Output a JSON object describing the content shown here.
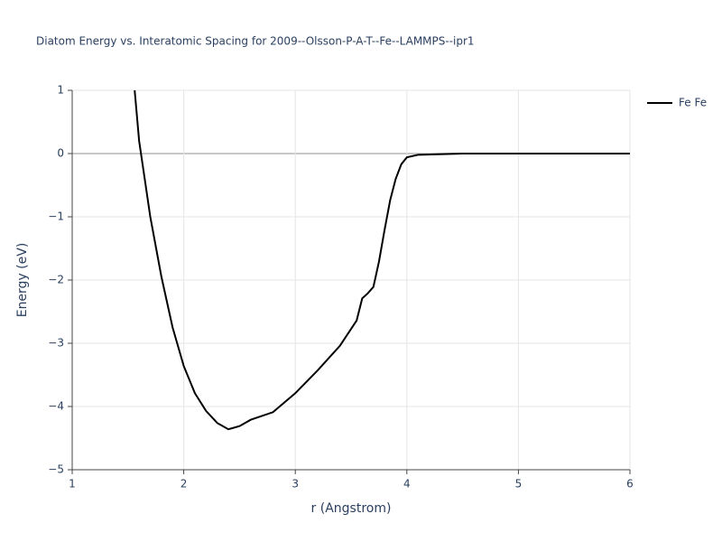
{
  "chart_data": {
    "type": "line",
    "title": "Diatom Energy vs. Interatomic Spacing for 2009--Olsson-P-A-T--Fe--LAMMPS--ipr1",
    "x_label": "r (Angstrom)",
    "y_label": "Energy (eV)",
    "x": [
      1.56,
      1.6,
      1.7,
      1.8,
      1.9,
      2.0,
      2.1,
      2.2,
      2.3,
      2.4,
      2.5,
      2.6,
      2.8,
      3.0,
      3.2,
      3.4,
      3.55,
      3.6,
      3.65,
      3.7,
      3.75,
      3.8,
      3.85,
      3.9,
      3.95,
      4.0,
      4.1,
      4.5,
      5.0,
      5.5,
      6.0
    ],
    "series": [
      {
        "name": "Fe Fe",
        "color": "#000000",
        "values": [
          1.0,
          0.2,
          -1.0,
          -1.95,
          -2.75,
          -3.36,
          -3.79,
          -4.07,
          -4.26,
          -4.36,
          -4.31,
          -4.21,
          -4.09,
          -3.79,
          -3.43,
          -3.04,
          -2.64,
          -2.29,
          -2.21,
          -2.11,
          -1.71,
          -1.21,
          -0.74,
          -0.4,
          -0.17,
          -0.06,
          -0.02,
          0,
          0,
          0,
          0
        ]
      }
    ],
    "xlim": [
      1,
      6
    ],
    "ylim": [
      -5,
      1
    ],
    "xticks": [
      1,
      2,
      3,
      4,
      5,
      6
    ],
    "yticks": [
      {
        "value": -5,
        "label": "−5"
      },
      {
        "value": -4,
        "label": "−4"
      },
      {
        "value": -3,
        "label": "−3"
      },
      {
        "value": -2,
        "label": "−2"
      },
      {
        "value": -1,
        "label": "−1"
      },
      0,
      1
    ],
    "grid": true
  }
}
